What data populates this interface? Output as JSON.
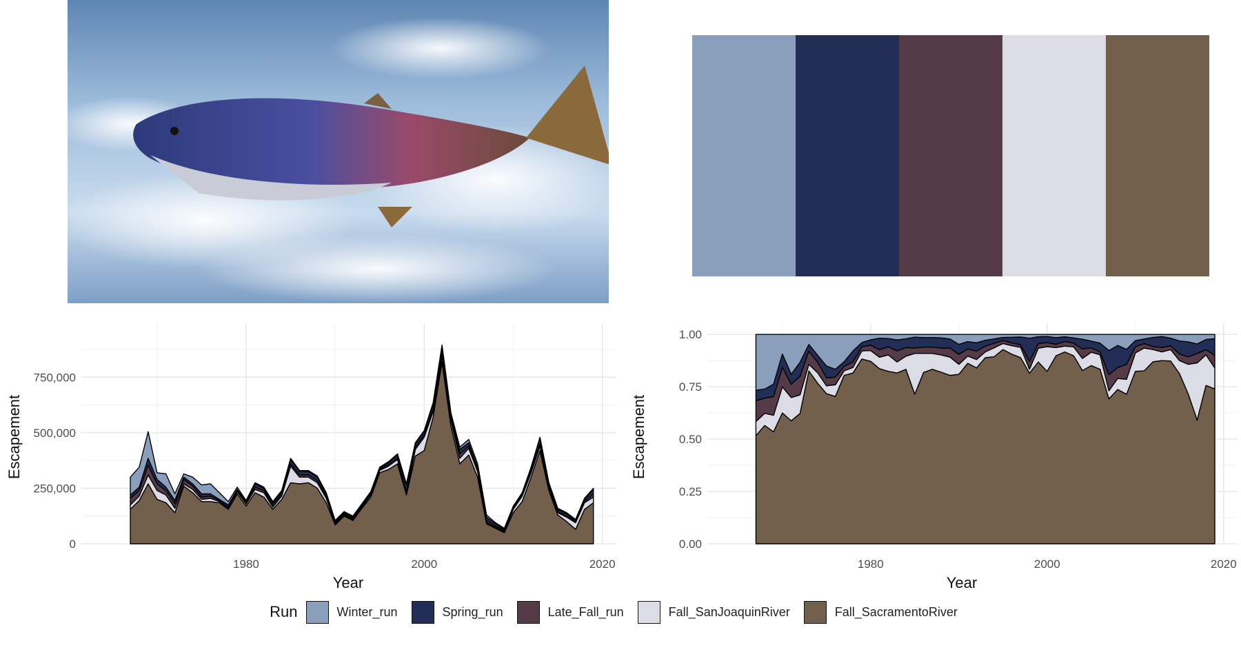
{
  "photo": {
    "subject": "leaping salmon over white water"
  },
  "palette": {
    "colors": [
      "#8a9fbc",
      "#222e56",
      "#553a48",
      "#dcdce6",
      "#725f4c"
    ]
  },
  "legend": {
    "title": "Run",
    "entries": [
      {
        "label": "Winter_run",
        "color": "#8a9fbc"
      },
      {
        "label": "Spring_run",
        "color": "#222e56"
      },
      {
        "label": "Late_Fall_run",
        "color": "#553a48"
      },
      {
        "label": "Fall_SanJoaquinRiver",
        "color": "#dcdce6"
      },
      {
        "label": "Fall_SacramentoRiver",
        "color": "#725f4c"
      }
    ]
  },
  "chart_data": [
    {
      "type": "area",
      "stacked": true,
      "xlabel": "Year",
      "ylabel": "Escapement",
      "xlim": [
        1961.5,
        2021.5
      ],
      "ylim": [
        0,
        990000
      ],
      "xticks": [
        1980,
        2000,
        2020
      ],
      "yticks": [
        0,
        250000,
        500000,
        750000
      ],
      "ytick_labels": [
        "0",
        "250,000",
        "500,000",
        "750,000"
      ],
      "x": [
        1967,
        1968,
        1969,
        1970,
        1971,
        1972,
        1973,
        1974,
        1975,
        1976,
        1977,
        1978,
        1979,
        1980,
        1981,
        1982,
        1983,
        1984,
        1985,
        1986,
        1987,
        1988,
        1989,
        1990,
        1991,
        1992,
        1993,
        1994,
        1995,
        1996,
        1997,
        1998,
        1999,
        2000,
        2001,
        2002,
        2003,
        2004,
        2005,
        2006,
        2007,
        2008,
        2009,
        2010,
        2011,
        2012,
        2013,
        2014,
        2015,
        2016,
        2017,
        2018,
        2019
      ],
      "series": [
        {
          "name": "Fall_SacramentoRiver",
          "color": "#725f4c",
          "values": [
            155000,
            195000,
            270000,
            200000,
            185000,
            140000,
            260000,
            230000,
            190000,
            190000,
            185000,
            155000,
            225000,
            170000,
            230000,
            210000,
            155000,
            200000,
            275000,
            270000,
            275000,
            250000,
            185000,
            85000,
            125000,
            105000,
            160000,
            210000,
            320000,
            335000,
            360000,
            220000,
            395000,
            420000,
            570000,
            820000,
            530000,
            360000,
            400000,
            300000,
            90000,
            70000,
            50000,
            140000,
            190000,
            300000,
            420000,
            240000,
            130000,
            100000,
            65000,
            155000,
            185000
          ]
        },
        {
          "name": "Fall_SanJoaquinRiver",
          "color": "#dcdce6",
          "values": [
            20000,
            20000,
            40000,
            40000,
            35000,
            20000,
            10000,
            15000,
            10000,
            15000,
            5000,
            5000,
            10000,
            10000,
            15000,
            20000,
            10000,
            15000,
            75000,
            30000,
            25000,
            25000,
            20000,
            5000,
            5000,
            5000,
            5000,
            10000,
            10000,
            15000,
            20000,
            5000,
            30000,
            60000,
            25000,
            25000,
            25000,
            25000,
            30000,
            25000,
            5000,
            5000,
            5000,
            15000,
            25000,
            20000,
            20000,
            15000,
            10000,
            20000,
            30000,
            30000,
            25000
          ]
        },
        {
          "name": "Late_Fall_run",
          "color": "#553a48",
          "values": [
            30000,
            25000,
            45000,
            30000,
            20000,
            20000,
            20000,
            15000,
            10000,
            10000,
            5000,
            5000,
            5000,
            5000,
            10000,
            10000,
            10000,
            10000,
            10000,
            10000,
            10000,
            10000,
            10000,
            5000,
            5000,
            5000,
            5000,
            5000,
            5000,
            5000,
            5000,
            10000,
            10000,
            10000,
            10000,
            20000,
            10000,
            20000,
            10000,
            5000,
            10000,
            5000,
            5000,
            5000,
            5000,
            5000,
            10000,
            5000,
            5000,
            5000,
            5000,
            5000,
            15000
          ]
        },
        {
          "name": "Spring_run",
          "color": "#222e56",
          "values": [
            15000,
            15000,
            30000,
            20000,
            15000,
            15000,
            10000,
            10000,
            15000,
            10000,
            5000,
            10000,
            5000,
            5000,
            15000,
            10000,
            10000,
            10000,
            20000,
            15000,
            15000,
            15000,
            10000,
            5000,
            5000,
            5000,
            5000,
            5000,
            5000,
            10000,
            15000,
            30000,
            15000,
            15000,
            20000,
            20000,
            15000,
            20000,
            15000,
            15000,
            15000,
            10000,
            5000,
            5000,
            5000,
            15000,
            25000,
            10000,
            10000,
            10000,
            5000,
            10000,
            20000
          ]
        },
        {
          "name": "Winter_run",
          "color": "#8a9fbc",
          "values": [
            80000,
            90000,
            120000,
            30000,
            60000,
            30000,
            15000,
            30000,
            40000,
            45000,
            30000,
            15000,
            10000,
            5000,
            5000,
            5000,
            5000,
            5000,
            5000,
            5000,
            5000,
            5000,
            5000,
            5000,
            5000,
            5000,
            5000,
            5000,
            5000,
            5000,
            5000,
            5000,
            5000,
            5000,
            10000,
            10000,
            10000,
            10000,
            15000,
            15000,
            10000,
            5000,
            5000,
            5000,
            5000,
            5000,
            5000,
            5000,
            5000,
            5000,
            5000,
            5000,
            5000
          ]
        }
      ]
    },
    {
      "type": "area",
      "stacked": true,
      "position": "fill",
      "xlabel": "Year",
      "ylabel": "Escapement",
      "xlim": [
        1961.5,
        2021.5
      ],
      "ylim": [
        0,
        1.05
      ],
      "xticks": [
        1980,
        2000,
        2020
      ],
      "yticks": [
        0,
        0.25,
        0.5,
        0.75,
        1
      ],
      "ytick_labels": [
        "0.00",
        "0.25",
        "0.50",
        "0.75",
        "1.00"
      ]
    }
  ]
}
